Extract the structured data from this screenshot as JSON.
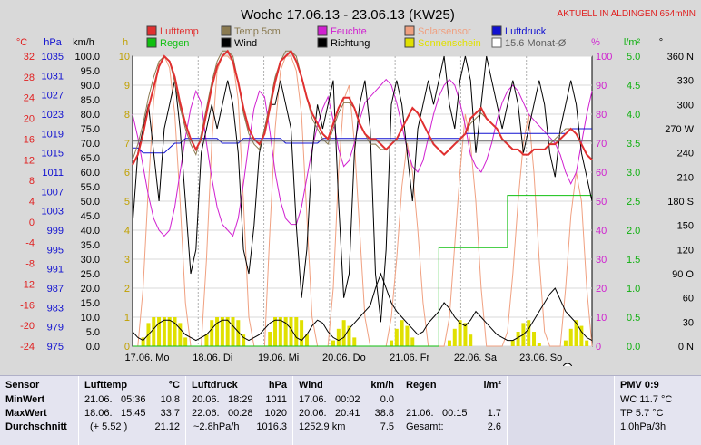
{
  "title": "Woche 17.06.13 - 23.06.13 (KW25)",
  "station_note": "AKTUELL IN ALDINGEN 654mNN",
  "axis_headers": {
    "temp": "°C",
    "pressure": "hPa",
    "wind": "km/h",
    "hours": "h",
    "percent": "%",
    "rain": "l/m²",
    "direction": "°"
  },
  "legend": [
    {
      "label": "Lufttemp",
      "color": "#e03030"
    },
    {
      "label": "Temp 5cm",
      "color": "#8a7a50"
    },
    {
      "label": "Feuchte",
      "color": "#d020d0"
    },
    {
      "label": "Solarsensor",
      "color": "#f0a080"
    },
    {
      "label": "Luftdruck",
      "color": "#1010d0"
    },
    {
      "label": "Regen",
      "color": "#10c010"
    },
    {
      "label": "Wind",
      "color": "#000000"
    },
    {
      "label": "Richtung",
      "color": "#000000"
    },
    {
      "label": "Sonnenschein",
      "color": "#e0e000"
    },
    {
      "label": "15.6 Monat-Ø",
      "color": "#606060"
    }
  ],
  "chart_data": {
    "type": "line",
    "title": "Woche 17.06.13 - 23.06.13 (KW25)",
    "x_labels": [
      "17.06. Mo",
      "18.06. Di",
      "19.06. Mi",
      "20.06. Do",
      "21.06. Fr",
      "22.06. Sa",
      "23.06. So"
    ],
    "axes": {
      "temp_c": {
        "ticks": [
          32.0,
          28.0,
          24.0,
          20.0,
          16.0,
          12.0,
          8.0,
          4.0,
          0.0,
          -4.0,
          -8.0,
          -12.0,
          -16.0,
          -20.0,
          -24.0
        ],
        "color": "#e02020"
      },
      "pressure_hpa": {
        "ticks": [
          1035,
          1031,
          1027,
          1023,
          1019,
          1015,
          1011,
          1007,
          1003,
          999,
          995,
          991,
          987,
          983,
          979,
          975
        ],
        "color": "#1010d0"
      },
      "wind_kmh": {
        "ticks": [
          "100.0",
          "95.0",
          "90.0",
          "85.0",
          "80.0",
          "75.0",
          "70.0",
          "65.0",
          "60.0",
          "55.0",
          "50.0",
          "45.0",
          "40.0",
          "35.0",
          "30.0",
          "25.0",
          "20.0",
          "15.0",
          "10.0",
          "5.0",
          "0.0"
        ],
        "color": "#000000"
      },
      "hours": {
        "ticks": [
          10,
          9,
          8,
          7,
          6,
          5,
          4,
          3,
          2,
          1,
          0
        ],
        "color": "#c0a000"
      },
      "percent": {
        "ticks": [
          100,
          90,
          80,
          70,
          60,
          50,
          40,
          30,
          20,
          10,
          0
        ],
        "color": "#d020d0"
      },
      "rain_lm2": {
        "ticks": [
          "5.0",
          "4.5",
          "4.0",
          "3.5",
          "3.0",
          "2.5",
          "2.0",
          "1.5",
          "1.0",
          "0.5",
          "0.0"
        ],
        "color": "#10b010"
      },
      "direction": {
        "ticks": [
          "360 N",
          "330",
          "300",
          "270 W",
          "240",
          "210",
          "180 S",
          "150",
          "120",
          "90 O",
          "60",
          "30",
          "0 N"
        ],
        "color": "#000000"
      }
    },
    "series": [
      {
        "name": "Lufttemp",
        "unit": "°C",
        "color": "#e03030",
        "values": [
          11,
          13,
          17,
          22,
          26,
          30,
          32,
          31,
          28,
          23,
          19,
          16,
          14,
          16,
          21,
          26,
          30,
          32,
          33,
          31,
          27,
          22,
          18,
          16,
          15,
          17,
          22,
          27,
          31,
          32,
          33,
          31,
          28,
          24,
          21,
          19,
          17,
          16,
          19,
          22,
          24,
          24,
          22,
          19,
          17,
          16,
          16,
          15,
          14,
          15,
          16,
          18,
          20,
          22,
          21,
          19,
          17,
          15,
          14,
          13,
          14,
          15,
          16,
          17,
          20,
          21,
          22,
          20,
          19,
          18,
          16,
          15,
          14,
          14,
          13,
          13,
          14,
          14,
          14,
          15,
          15,
          16,
          17,
          18,
          17,
          15,
          13,
          12
        ]
      },
      {
        "name": "Temp 5cm",
        "unit": "°C",
        "color": "#8a7a50",
        "values": [
          12,
          15,
          19,
          24,
          28,
          31,
          32,
          31,
          27,
          22,
          18,
          15,
          13,
          17,
          22,
          27,
          31,
          33,
          33,
          32,
          27,
          21,
          17,
          15,
          14,
          18,
          23,
          28,
          31,
          33,
          33,
          32,
          28,
          24,
          20,
          18,
          16,
          15,
          18,
          21,
          23,
          23,
          22,
          19,
          17,
          15,
          15,
          14,
          14,
          15,
          16,
          18,
          20,
          22,
          21,
          19,
          17,
          15,
          14,
          13,
          14,
          15,
          16,
          17,
          19,
          20,
          21,
          20,
          19,
          18,
          16,
          15,
          14,
          14,
          13,
          13,
          14,
          14,
          14,
          15,
          16,
          17,
          18,
          18,
          17,
          15,
          13,
          12
        ]
      },
      {
        "name": "Feuchte",
        "unit": "%",
        "color": "#d020d0",
        "values": [
          80,
          72,
          62,
          52,
          44,
          40,
          38,
          40,
          48,
          60,
          72,
          82,
          88,
          84,
          70,
          58,
          48,
          42,
          40,
          38,
          44,
          56,
          70,
          82,
          88,
          86,
          74,
          60,
          50,
          44,
          42,
          42,
          48,
          58,
          68,
          76,
          82,
          86,
          78,
          68,
          62,
          64,
          70,
          78,
          84,
          86,
          88,
          90,
          92,
          90,
          84,
          76,
          68,
          62,
          60,
          64,
          72,
          80,
          86,
          90,
          92,
          90,
          84,
          76,
          66,
          62,
          60,
          64,
          70,
          78,
          84,
          88,
          90,
          88,
          84,
          80,
          78,
          76,
          74,
          72,
          70,
          66,
          60,
          56,
          60,
          70,
          80,
          88
        ]
      },
      {
        "name": "Solarsensor",
        "unit": "%",
        "color": "#f0a080",
        "values": [
          0,
          0,
          20,
          55,
          85,
          98,
          100,
          96,
          80,
          50,
          15,
          0,
          0,
          0,
          30,
          70,
          95,
          100,
          100,
          98,
          85,
          50,
          10,
          0,
          0,
          0,
          40,
          75,
          95,
          100,
          100,
          95,
          80,
          45,
          10,
          0,
          0,
          0,
          20,
          60,
          85,
          90,
          70,
          40,
          10,
          0,
          0,
          0,
          0,
          10,
          30,
          55,
          70,
          60,
          40,
          15,
          0,
          0,
          0,
          0,
          10,
          35,
          60,
          80,
          70,
          50,
          20,
          0,
          0,
          0,
          0,
          5,
          25,
          50,
          70,
          80,
          60,
          30,
          5,
          0,
          0,
          0,
          20,
          45,
          60,
          50,
          20,
          0
        ]
      },
      {
        "name": "Luftdruck",
        "unit": "hPa",
        "color": "#1010d0",
        "values": [
          1016,
          1016,
          1015,
          1015,
          1015,
          1015,
          1015,
          1016,
          1017,
          1017,
          1018,
          1018,
          1018,
          1018,
          1018,
          1018,
          1018,
          1017,
          1017,
          1017,
          1017,
          1018,
          1018,
          1018,
          1018,
          1018,
          1018,
          1018,
          1018,
          1017,
          1017,
          1017,
          1017,
          1017,
          1017,
          1017,
          1018,
          1018,
          1018,
          1018,
          1018,
          1018,
          1018,
          1018,
          1018,
          1018,
          1018,
          1018,
          1018,
          1018,
          1018,
          1018,
          1018,
          1018,
          1018,
          1018,
          1018,
          1018,
          1018,
          1018,
          1018,
          1018,
          1018,
          1019,
          1019,
          1019,
          1019,
          1019,
          1019,
          1019,
          1019,
          1019,
          1019,
          1019,
          1019,
          1019,
          1019,
          1019,
          1019,
          1019,
          1019,
          1019,
          1019,
          1020,
          1020,
          1020,
          1020,
          1020
        ]
      },
      {
        "name": "Wind",
        "unit": "km/h",
        "color": "#000000",
        "values": [
          5,
          3,
          2,
          4,
          6,
          8,
          9,
          9,
          8,
          6,
          4,
          3,
          2,
          3,
          4,
          6,
          8,
          9,
          9,
          7,
          5,
          3,
          2,
          3,
          4,
          6,
          8,
          9,
          9,
          8,
          6,
          3,
          2,
          4,
          7,
          9,
          8,
          5,
          3,
          2,
          3,
          6,
          8,
          10,
          12,
          14,
          20,
          25,
          20,
          15,
          12,
          10,
          8,
          6,
          4,
          5,
          8,
          10,
          12,
          15,
          13,
          10,
          8,
          7,
          9,
          12,
          10,
          8,
          6,
          4,
          3,
          2,
          2,
          3,
          4,
          6,
          9,
          12,
          15,
          18,
          20,
          16,
          12,
          10,
          8,
          5,
          3,
          2
        ]
      },
      {
        "name": "Richtung",
        "unit": "°",
        "color": "#000000",
        "values": [
          150,
          240,
          270,
          300,
          240,
          180,
          270,
          300,
          330,
          270,
          180,
          90,
          120,
          240,
          270,
          300,
          270,
          300,
          330,
          300,
          240,
          120,
          90,
          150,
          240,
          270,
          300,
          300,
          330,
          300,
          270,
          150,
          60,
          120,
          240,
          300,
          270,
          300,
          330,
          180,
          60,
          90,
          240,
          300,
          330,
          270,
          90,
          30,
          120,
          300,
          330,
          300,
          240,
          180,
          270,
          300,
          330,
          300,
          330,
          360,
          300,
          270,
          330,
          360,
          330,
          240,
          300,
          360,
          330,
          300,
          270,
          300,
          330,
          300,
          240,
          270,
          300,
          330,
          300,
          240,
          210,
          270,
          300,
          330,
          300,
          240,
          210,
          180
        ]
      },
      {
        "name": "Regen",
        "unit": "l/m²",
        "color": "#10c010",
        "values": [
          0,
          0,
          0,
          0,
          0,
          0,
          0,
          0,
          0,
          0,
          0,
          0,
          0,
          0,
          0,
          0,
          0,
          0,
          0,
          0,
          0,
          0,
          0,
          0,
          0,
          0,
          0,
          0,
          0,
          0,
          0,
          0,
          0,
          0,
          0,
          0,
          0,
          0,
          0,
          0,
          0,
          0,
          0,
          0,
          0,
          0,
          0,
          0,
          0,
          0,
          0,
          0,
          0,
          0,
          0,
          0,
          0,
          0,
          1.7,
          1.7,
          1.7,
          1.7,
          1.7,
          1.7,
          1.7,
          1.7,
          1.7,
          1.7,
          1.7,
          1.7,
          1.7,
          2.6,
          2.6,
          2.6,
          2.6,
          2.6,
          2.6,
          2.6,
          2.6,
          2.6,
          2.6,
          2.6,
          2.6,
          2.6,
          2.6,
          2.6,
          2.6,
          2.6
        ]
      },
      {
        "name": "Sonnenschein",
        "unit": "h",
        "color": "#e0e000",
        "values": [
          0,
          0,
          0.3,
          0.8,
          1,
          1,
          1,
          1,
          1,
          0.8,
          0.3,
          0,
          0,
          0,
          0.4,
          0.9,
          1,
          1,
          1,
          1,
          0.9,
          0.4,
          0,
          0,
          0,
          0,
          0.5,
          1,
          1,
          1,
          1,
          1,
          0.9,
          0.4,
          0,
          0,
          0,
          0,
          0.2,
          0.6,
          0.9,
          0.7,
          0.3,
          0,
          0,
          0,
          0,
          0,
          0,
          0.2,
          0.6,
          0.9,
          0.7,
          0.3,
          0,
          0,
          0,
          0,
          0,
          0,
          0.2,
          0.6,
          0.9,
          0.8,
          0.4,
          0,
          0,
          0,
          0,
          0,
          0,
          0,
          0.2,
          0.5,
          0.8,
          0.9,
          0.5,
          0.1,
          0,
          0,
          0,
          0,
          0.2,
          0.6,
          0.9,
          0.7,
          0.2,
          0
        ]
      }
    ],
    "reference_lines": [
      {
        "name": "15.6 Monat-Ø",
        "axis": "temp_c",
        "value": 15.6,
        "color": "#606060"
      }
    ]
  },
  "stats": {
    "sensor": {
      "header": "Sensor",
      "rows": [
        "MinWert",
        "MaxWert",
        "Durchschnitt"
      ]
    },
    "lufttemp": {
      "header": "Lufttemp",
      "unit": "°C",
      "rows": [
        [
          "21.06.",
          "05:36",
          "10.8"
        ],
        [
          "18.06.",
          "15:45",
          "33.7"
        ],
        [
          "",
          "(+ 5.52 )",
          "21.12"
        ]
      ]
    },
    "luftdruck": {
      "header": "Luftdruck",
      "unit": "hPa",
      "rows": [
        [
          "20.06.",
          "18:29",
          "1011"
        ],
        [
          "22.06.",
          "00:28",
          "1020"
        ],
        [
          "",
          "~2.8hPa/h",
          "1016.3"
        ]
      ]
    },
    "wind": {
      "header": "Wind",
      "unit": "km/h",
      "rows": [
        [
          "17.06.",
          "00:02",
          "0.0"
        ],
        [
          "20.06.",
          "20:41",
          "38.8"
        ],
        [
          "",
          "1252.9 km",
          "7.5"
        ]
      ]
    },
    "regen": {
      "header": "Regen",
      "unit": "l/m²",
      "rows": [
        [
          "",
          "",
          ""
        ],
        [
          "21.06.",
          "00:15",
          "1.7"
        ],
        [
          "Gesamt:",
          "",
          "2.6"
        ]
      ]
    },
    "pmv": {
      "header": "PMV 0:9",
      "rows": [
        "WC 11.7 °C",
        "TP 5.7 °C",
        "1.0hPa/3h"
      ]
    }
  }
}
